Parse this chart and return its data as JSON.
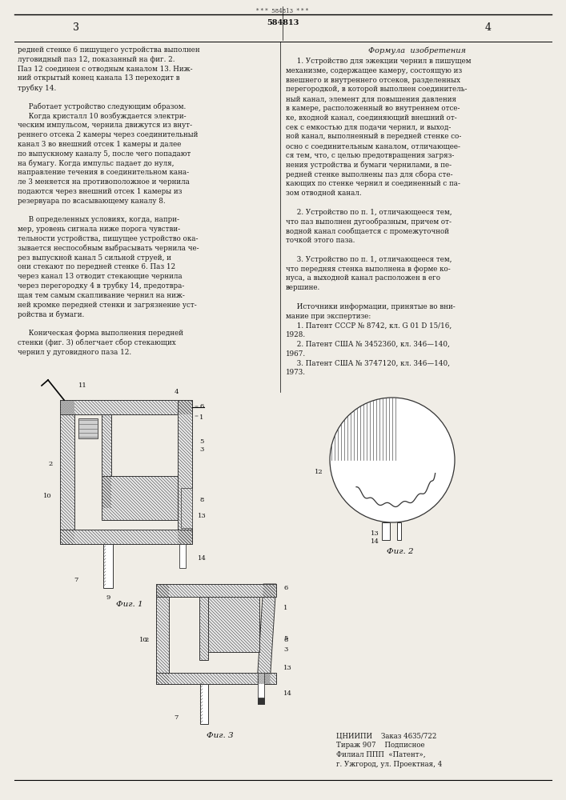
{
  "page_width": 7.07,
  "page_height": 10.0,
  "bg": "#f0ede6",
  "text_color": "#1a1a1a",
  "patent_number": "584813",
  "page_left": "3",
  "page_right": "4",
  "left_col_lines": [
    "редней стенке 6 пишущего устройства выполнен",
    "луговидный паз 12, показанный на фиг. 2.",
    "Паз 12 соединен с отводным каналом 13. Ниж-",
    "ний открытый конец канала 13 переходит в",
    "трубку 14.",
    " ",
    "     Работает устройство следующим образом.",
    "     Когда кристалл 10 возбуждается электри-",
    "ческим импульсом, чернила движутся из внут-",
    "реннего отсека 2 камеры через соединительный",
    "канал 3 во внешний отсек 1 камеры и далее",
    "по выпускному каналу 5, после чего попадают",
    "на бумагу. Когда импульс падает до нуля,",
    "направление течения в соединительном кана-",
    "ле 3 меняется на противоположное и чернила",
    "подаются через внешний отсек 1 камеры из",
    "резервуара по всасывающему каналу 8.",
    " ",
    "     В определенных условиях, когда, напри-",
    "мер, уровень сигнала ниже порога чувстви-",
    "тельности устройства, пишущее устройство ока-",
    "зывается неспособным выбрасывать чернила че-",
    "рез выпускной канал 5 сильной струей, и",
    "они стекают по передней стенке 6. Паз 12",
    "через канал 13 отводит стекающие чернила",
    "через перегородку 4 в трубку 14, предотвра-",
    "щая тем самым скапливание чернил на ниж-",
    "ней кромке передней стенки и загрязнение уст-",
    "ройства и бумаги.",
    " ",
    "     Коническая форма выполнения передней",
    "стенки (фиг. 3) облегчает сбор стекающих",
    "чернил у дуговидного паза 12."
  ],
  "right_col_lines": [
    "     1. Устройство для эжекции чернил в пишущем",
    "механизме, содержащее камеру, состоящую из",
    "внешнего и внутреннего отсеков, разделенных",
    "перегородкой, в которой выполнен соединитель-",
    "ный канал, элемент для повышения давления",
    "в камере, расположенный во внутреннем отсе-",
    "ке, входной канал, соединяющий внешний от-",
    "сек с емкостью для подачи чернил, и выход-",
    "ной канал, выполненный в передней стенке со-",
    "осно с соединительным каналом, отличающее-",
    "ся тем, что, с целью предотвращения загряз-",
    "нения устройства и бумаги чернилами, в пе-",
    "редней стенке выполнены паз для сбора сте-",
    "кающих по стенке чернил и соединенный с па-",
    "зом отводной канал.",
    " ",
    "     2. Устройство по п. 1, отличающееся тем,",
    "что паз выполнен дугообразным, причем от-",
    "водной канал сообщается с промежуточной",
    "точкой этого паза.",
    " ",
    "     3. Устройство по п. 1, отличающееся тем,",
    "что передняя стенка выполнена в форме ко-",
    "нуса, а выходной канал расположен в его",
    "вершине.",
    " ",
    "     Источники информации, принятые во вни-",
    "мание при экспертизе:",
    "     1. Патент СССР № 8742, кл. G 01 D 15/16,",
    "1928.",
    "     2. Патент США № 3452360, кл. 346—140,",
    "1967.",
    "     3. Патент США № 3747120, кл. 346—140,",
    "1973."
  ],
  "bottom_lines": [
    "ЦНИИПИ    Заказ 4635/722",
    "Тираж 907    Подписное",
    "Филиал ППП  «Патент»,",
    "г. Ужгород, ул. Проектная, 4"
  ]
}
